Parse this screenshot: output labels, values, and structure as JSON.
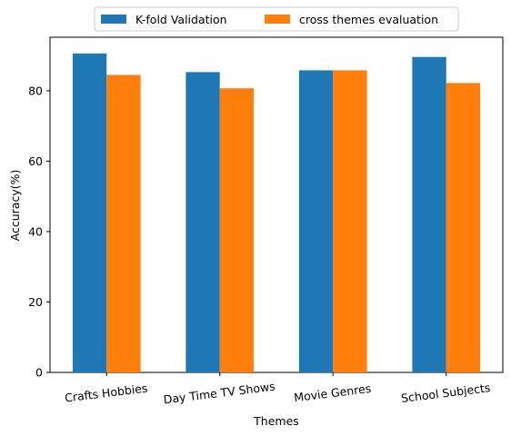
{
  "chart_data": {
    "type": "bar",
    "categories": [
      "Crafts Hobbies",
      "Day Time TV Shows",
      "Movie Genres",
      "School Subjects"
    ],
    "series": [
      {
        "name": "K-fold Validation",
        "values": [
          90.6,
          85.3,
          85.8,
          89.6
        ],
        "color": "#1f77b4"
      },
      {
        "name": "cross themes evaluation",
        "values": [
          84.5,
          80.7,
          85.8,
          82.2
        ],
        "color": "#ff7f0e"
      }
    ],
    "xlabel": "Themes",
    "ylabel": "Accuracy(%)",
    "ylim": [
      0,
      95.2
    ],
    "yticks": [
      0,
      20,
      40,
      60,
      80
    ],
    "legend": "top-center, outside plot, horizontal",
    "grid": false
  }
}
